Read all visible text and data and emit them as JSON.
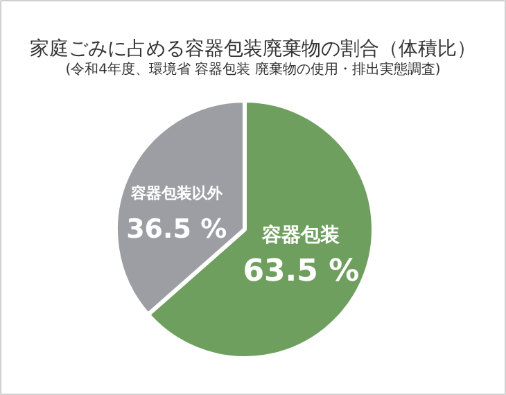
{
  "chart_data": {
    "type": "pie",
    "title": "家庭ごみに占める容器包装廃棄物の割合（体積比）",
    "subtitle": "(令和4年度、環境省 容器包装 廃棄物の使用・排出実態調査)",
    "categories": [
      "容器包装",
      "容器包装以外"
    ],
    "values": [
      63.5,
      36.5
    ],
    "colors": [
      "#6e9f5e",
      "#9d9ea4"
    ],
    "value_labels": [
      "63.5 %",
      "36.5 %"
    ]
  }
}
